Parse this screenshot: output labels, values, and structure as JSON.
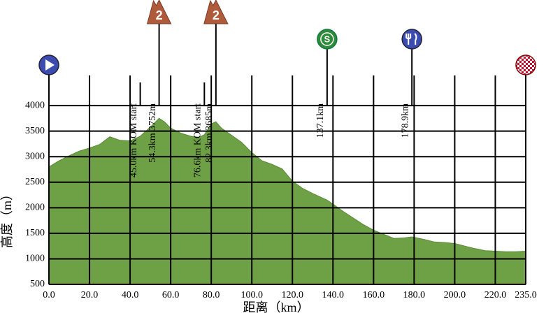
{
  "chart_data": {
    "type": "area",
    "x_label": "距离（km）",
    "y_label": "高度（m）",
    "color": "#6ea046",
    "grid": true,
    "xlim": [
      0,
      235
    ],
    "ylim": [
      500,
      4590
    ],
    "xticks": [
      {
        "value": 0,
        "label": "0.0"
      },
      {
        "value": 20,
        "label": "20.0"
      },
      {
        "value": 40,
        "label": "40.0"
      },
      {
        "value": 60,
        "label": "60.0"
      },
      {
        "value": 80,
        "label": "80.0"
      },
      {
        "value": 100,
        "label": "100.0"
      },
      {
        "value": 120,
        "label": "120.0"
      },
      {
        "value": 140,
        "label": "140.0"
      },
      {
        "value": 160,
        "label": "160.0"
      },
      {
        "value": 180,
        "label": "180.0"
      },
      {
        "value": 200,
        "label": "200.0"
      },
      {
        "value": 220,
        "label": "220.0"
      },
      {
        "value": 235,
        "label": "235.0"
      }
    ],
    "yticks": [
      500,
      1000,
      1500,
      2000,
      2500,
      3000,
      3500,
      4000
    ],
    "x": [
      0,
      5,
      10,
      15,
      20,
      25,
      30,
      35,
      40,
      45,
      50,
      54.3,
      57,
      60,
      65,
      70,
      74,
      76.6,
      80,
      82.3,
      85,
      90,
      95,
      100,
      105,
      110,
      115,
      120,
      125,
      130,
      137.1,
      140,
      145,
      150,
      155,
      160,
      165,
      170,
      175,
      178.9,
      185,
      190,
      195,
      200,
      205,
      210,
      215,
      220,
      225,
      230,
      235
    ],
    "values": [
      2800,
      2920,
      3020,
      3110,
      3170,
      3240,
      3390,
      3320,
      3310,
      3400,
      3580,
      3752,
      3680,
      3560,
      3460,
      3400,
      3380,
      3430,
      3640,
      3685,
      3560,
      3420,
      3280,
      3080,
      2920,
      2850,
      2760,
      2520,
      2380,
      2280,
      2150,
      2070,
      1930,
      1800,
      1670,
      1560,
      1480,
      1400,
      1410,
      1430,
      1380,
      1330,
      1320,
      1300,
      1250,
      1200,
      1160,
      1150,
      1140,
      1140,
      1150
    ],
    "markers": [
      {
        "km": 0,
        "icon": "start"
      },
      {
        "km": 45.0,
        "label": "45.0km KOM start"
      },
      {
        "km": 54.3,
        "label": "54.3km  3752m",
        "icon": "kom",
        "icon_label": "2"
      },
      {
        "km": 76.6,
        "label": "76.6km KOM start"
      },
      {
        "km": 82.3,
        "label": "82.3km  3685m",
        "icon": "kom",
        "icon_label": "2"
      },
      {
        "km": 137.1,
        "label": "137.1km",
        "icon": "sprint",
        "icon_label": "S"
      },
      {
        "km": 178.9,
        "label": "178.9km",
        "icon": "feed"
      },
      {
        "km": 235,
        "icon": "finish"
      }
    ]
  }
}
